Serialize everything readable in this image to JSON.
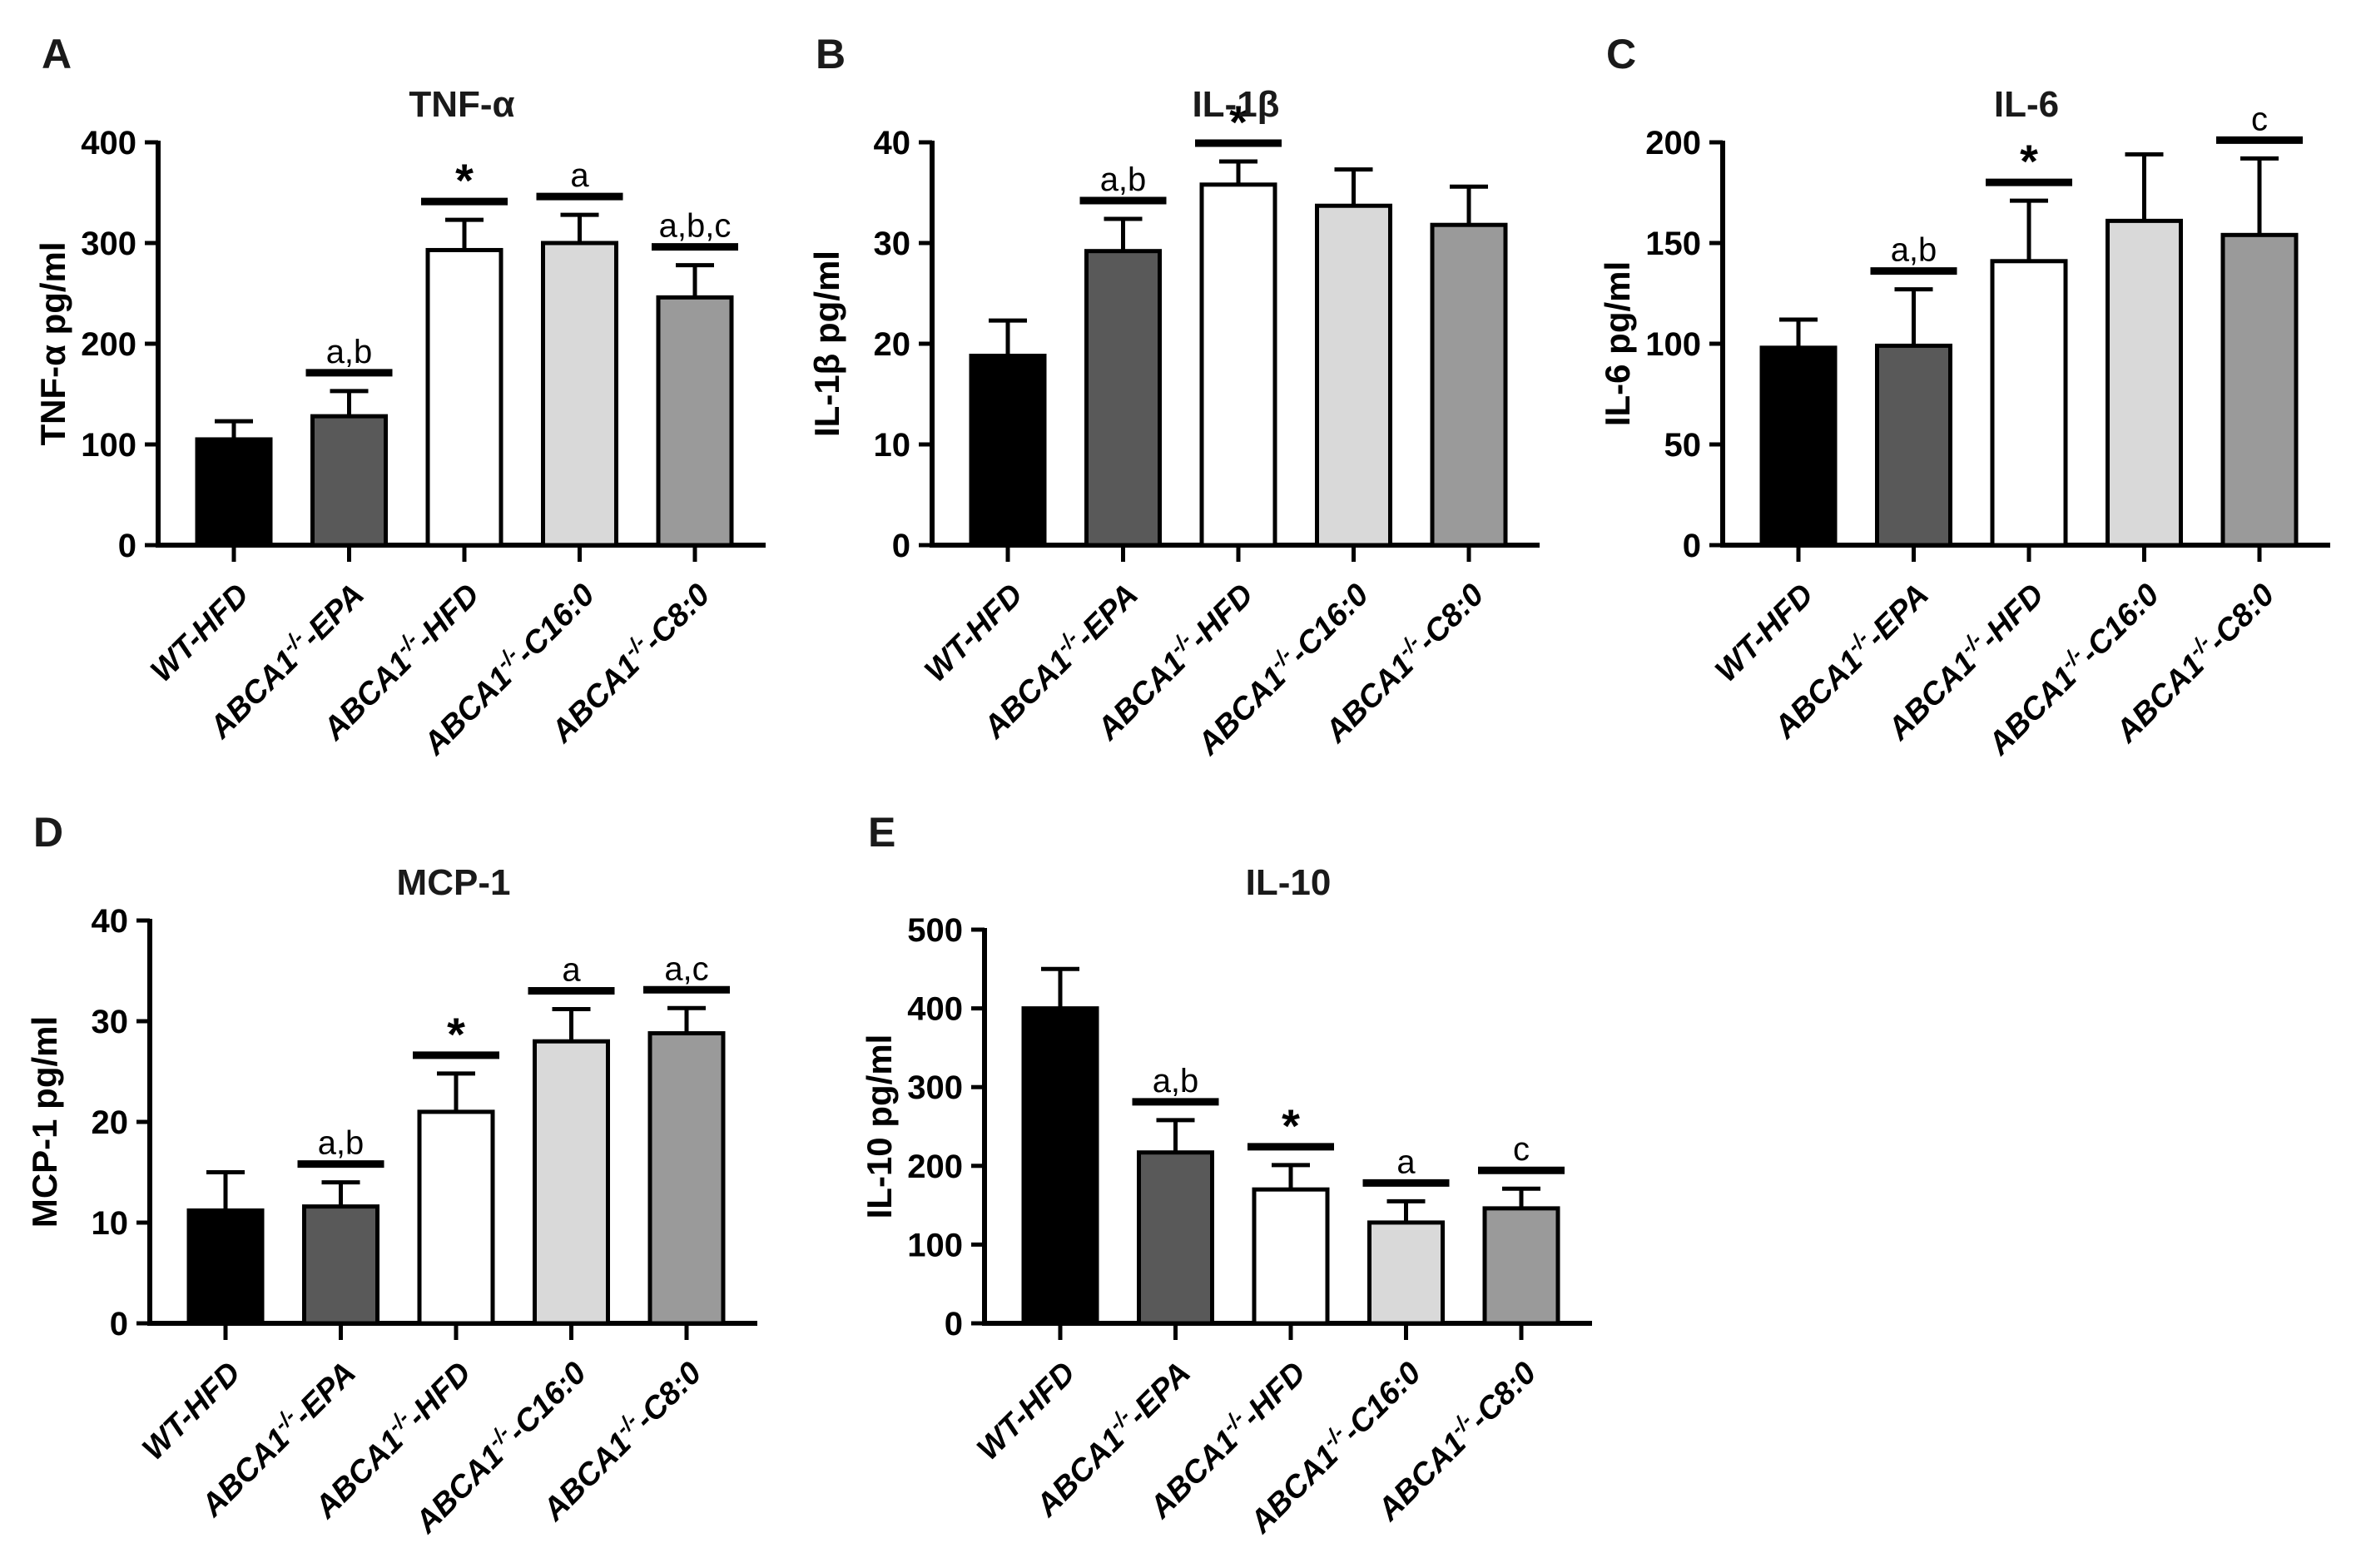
{
  "figure": {
    "background": "#ffffff",
    "axis_color": "#000000",
    "bar_colors": [
      "#000000",
      "#595959",
      "#ffffff",
      "#d9d9d9",
      "#9a9a9a"
    ],
    "units": "pg/ml"
  },
  "chart_data": [
    {
      "type": "bar",
      "panel": "A",
      "title": "TNF-α",
      "ylabel": "TNF-α pg/ml",
      "ylim": [
        0,
        400
      ],
      "ytick_step": 100,
      "grid": false,
      "legend": null,
      "categories": [
        "WT-HFD",
        "ABCA1-/--EPA",
        "ABCA1-/--HFD",
        "ABCA1-/--C16:0",
        "ABCA1-/--C8:0"
      ],
      "category_parts": [
        {
          "base": "WT-HFD",
          "sup": "",
          "post": ""
        },
        {
          "base": "ABCA1",
          "sup": "-/-",
          "post": "-EPA"
        },
        {
          "base": "ABCA1",
          "sup": "-/-",
          "post": "-HFD"
        },
        {
          "base": "ABCA1",
          "sup": "-/-",
          "post": "-C16:0"
        },
        {
          "base": "ABCA1",
          "sup": "-/-",
          "post": "-C8:0"
        }
      ],
      "values": [
        105,
        128,
        293,
        300,
        246
      ],
      "errors_upper": [
        18,
        25,
        30,
        28,
        32
      ],
      "annotations": [
        null,
        "a,b",
        "*",
        "a",
        "a,b,c"
      ]
    },
    {
      "type": "bar",
      "panel": "B",
      "title": "IL-1β",
      "ylabel": "IL-1β pg/ml",
      "ylim": [
        0,
        40
      ],
      "ytick_step": 10,
      "grid": false,
      "legend": null,
      "categories": [
        "WT-HFD",
        "ABCA1-/--EPA",
        "ABCA1-/--HFD",
        "ABCA1-/--C16:0",
        "ABCA1-/--C8:0"
      ],
      "category_parts": [
        {
          "base": "WT-HFD",
          "sup": "",
          "post": ""
        },
        {
          "base": "ABCA1",
          "sup": "-/-",
          "post": "-EPA"
        },
        {
          "base": "ABCA1",
          "sup": "-/-",
          "post": "-HFD"
        },
        {
          "base": "ABCA1",
          "sup": "-/-",
          "post": "-C16:0"
        },
        {
          "base": "ABCA1",
          "sup": "-/-",
          "post": "-C8:0"
        }
      ],
      "values": [
        18.8,
        29.2,
        35.8,
        33.7,
        31.8
      ],
      "errors_upper": [
        3.5,
        3.2,
        2.3,
        3.6,
        3.8
      ],
      "annotations": [
        null,
        "a,b",
        "*",
        null,
        null
      ]
    },
    {
      "type": "bar",
      "panel": "C",
      "title": "IL-6",
      "ylabel": "IL-6 pg/ml",
      "ylim": [
        0,
        200
      ],
      "ytick_step": 50,
      "grid": false,
      "legend": null,
      "categories": [
        "WT-HFD",
        "ABCA1-/--EPA",
        "ABCA1-/--HFD",
        "ABCA1-/--C16:0",
        "ABCA1-/--C8:0"
      ],
      "category_parts": [
        {
          "base": "WT-HFD",
          "sup": "",
          "post": ""
        },
        {
          "base": "ABCA1",
          "sup": "-/-",
          "post": "-EPA"
        },
        {
          "base": "ABCA1",
          "sup": "-/-",
          "post": "-HFD"
        },
        {
          "base": "ABCA1",
          "sup": "-/-",
          "post": "-C16:0"
        },
        {
          "base": "ABCA1",
          "sup": "-/-",
          "post": "-C8:0"
        }
      ],
      "values": [
        98,
        99,
        141,
        161,
        154
      ],
      "errors_upper": [
        14,
        28,
        30,
        33,
        38
      ],
      "annotations": [
        null,
        "a,b",
        "*",
        null,
        "c"
      ]
    },
    {
      "type": "bar",
      "panel": "D",
      "title": "MCP-1",
      "ylabel": "MCP-1 pg/ml",
      "ylim": [
        0,
        40
      ],
      "ytick_step": 10,
      "grid": false,
      "legend": null,
      "categories": [
        "WT-HFD",
        "ABCA1-/--EPA",
        "ABCA1-/--HFD",
        "ABCA1-/--C16:0",
        "ABCA1-/--C8:0"
      ],
      "category_parts": [
        {
          "base": "WT-HFD",
          "sup": "",
          "post": ""
        },
        {
          "base": "ABCA1",
          "sup": "-/-",
          "post": "-EPA"
        },
        {
          "base": "ABCA1",
          "sup": "-/-",
          "post": "-HFD"
        },
        {
          "base": "ABCA1",
          "sup": "-/-",
          "post": "-C16:0"
        },
        {
          "base": "ABCA1",
          "sup": "-/-",
          "post": "-C8:0"
        }
      ],
      "values": [
        11.2,
        11.6,
        21,
        28,
        28.8
      ],
      "errors_upper": [
        3.8,
        2.4,
        3.8,
        3.2,
        2.5
      ],
      "annotations": [
        null,
        "a,b",
        "*",
        "a",
        "a,c"
      ]
    },
    {
      "type": "bar",
      "panel": "E",
      "title": "IL-10",
      "ylabel": "IL-10 pg/ml",
      "ylim": [
        0,
        500
      ],
      "ytick_step": 100,
      "grid": false,
      "legend": null,
      "categories": [
        "WT-HFD",
        "ABCA1-/--EPA",
        "ABCA1-/--HFD",
        "ABCA1-/--C16:0",
        "ABCA1-/--C8:0"
      ],
      "category_parts": [
        {
          "base": "WT-HFD",
          "sup": "",
          "post": ""
        },
        {
          "base": "ABCA1",
          "sup": "-/-",
          "post": "-EPA"
        },
        {
          "base": "ABCA1",
          "sup": "-/-",
          "post": "-HFD"
        },
        {
          "base": "ABCA1",
          "sup": "-/-",
          "post": "-C16:0"
        },
        {
          "base": "ABCA1",
          "sup": "-/-",
          "post": "-C8:0"
        }
      ],
      "values": [
        400,
        217,
        170,
        128,
        146
      ],
      "errors_upper": [
        50,
        41,
        31,
        27,
        25
      ],
      "annotations": [
        null,
        "a,b",
        "*",
        "a",
        "c"
      ]
    }
  ]
}
